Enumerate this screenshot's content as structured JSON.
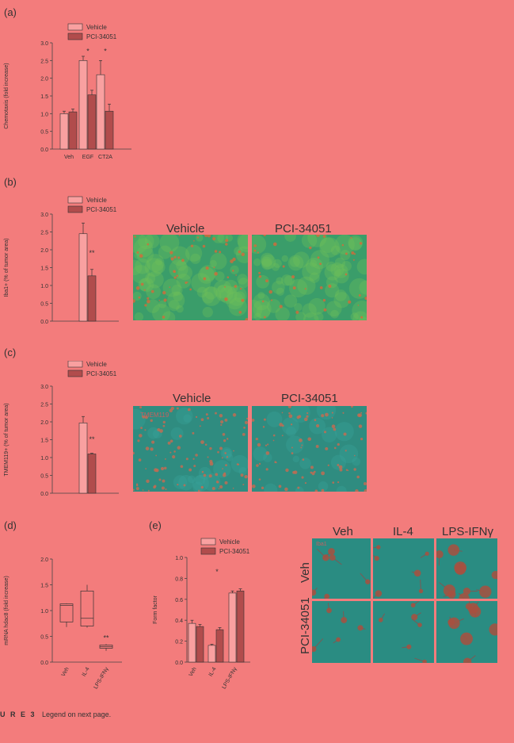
{
  "panel_labels": {
    "a": "(a)",
    "b": "(b)",
    "c": "(c)",
    "d": "(d)",
    "e": "(e)"
  },
  "legend": {
    "vehicle": "Vehicle",
    "pci": "PCI-34051"
  },
  "colors": {
    "background": "#f37c7c",
    "vehicle_bar": "#f9a0a0",
    "pci_bar": "#b14c4c",
    "image_green": "#2f9a78",
    "image_teal": "#2a8c82"
  },
  "chart_data": [
    {
      "id": "a",
      "type": "bar",
      "ylabel": "Chemotaxis (fold increase)",
      "categories": [
        "Veh",
        "EGF",
        "CT2A"
      ],
      "series": [
        {
          "name": "Vehicle",
          "values": [
            1.0,
            2.5,
            2.1
          ],
          "err": [
            0.07,
            0.12,
            0.4
          ]
        },
        {
          "name": "PCI-34051",
          "values": [
            1.05,
            1.53,
            1.07
          ],
          "err": [
            0.08,
            0.13,
            0.2
          ]
        }
      ],
      "ylim": [
        0,
        3.0
      ],
      "yticks": [
        "0.0",
        "0.5",
        "1.0",
        "1.5",
        "2.0",
        "2.5",
        "3.0"
      ],
      "annotations": [
        "*",
        "*"
      ]
    },
    {
      "id": "b",
      "type": "bar",
      "ylabel": "Iba1+ (% of tumor area)",
      "categories": [
        ""
      ],
      "series": [
        {
          "name": "Vehicle",
          "values": [
            2.45
          ],
          "err": [
            0.3
          ]
        },
        {
          "name": "PCI-34051",
          "values": [
            1.27
          ],
          "err": [
            0.18
          ]
        }
      ],
      "ylim": [
        0,
        3.0
      ],
      "yticks": [
        "0.0",
        "0.5",
        "1.0",
        "1.5",
        "2.0",
        "2.5",
        "3.0"
      ],
      "annotations": [
        "**"
      ]
    },
    {
      "id": "c",
      "type": "bar",
      "ylabel": "TMEM119+ (% of tumor area)",
      "categories": [
        ""
      ],
      "series": [
        {
          "name": "Vehicle",
          "values": [
            1.97
          ],
          "err": [
            0.18
          ]
        },
        {
          "name": "PCI-34051",
          "values": [
            1.1
          ],
          "err": [
            0.02
          ]
        }
      ],
      "ylim": [
        0,
        3.0
      ],
      "yticks": [
        "0.0",
        "0.5",
        "1.0",
        "1.5",
        "2.0",
        "2.5",
        "3.0"
      ],
      "annotations": [
        "**"
      ]
    },
    {
      "id": "d",
      "type": "box",
      "ylabel": "mRNA hdac8 (fold increase)",
      "categories": [
        "Veh",
        "IL-4",
        "LPS-IFNγ"
      ],
      "boxes": [
        {
          "min": 0.68,
          "q1": 0.78,
          "median": 1.1,
          "q3": 1.13,
          "max": 1.14
        },
        {
          "min": 0.67,
          "q1": 0.7,
          "median": 0.85,
          "q3": 1.38,
          "max": 1.5
        },
        {
          "min": 0.22,
          "q1": 0.27,
          "median": 0.3,
          "q3": 0.33,
          "max": 0.35
        }
      ],
      "ylim": [
        0,
        2.0
      ],
      "yticks": [
        "0.0",
        "0.5",
        "1.0",
        "1.5",
        "2.0"
      ],
      "annotations": [
        "**"
      ]
    },
    {
      "id": "e",
      "type": "bar",
      "ylabel": "Form factor",
      "categories": [
        "Veh",
        "IL-4",
        "LPS-IFNγ"
      ],
      "series": [
        {
          "name": "Vehicle",
          "values": [
            0.37,
            0.16,
            0.66
          ],
          "err": [
            0.03,
            0.01,
            0.02
          ]
        },
        {
          "name": "PCI-34051",
          "values": [
            0.34,
            0.31,
            0.68
          ],
          "err": [
            0.02,
            0.02,
            0.02
          ]
        }
      ],
      "ylim": [
        0,
        1.0
      ],
      "yticks": [
        "0.0",
        "0.2",
        "0.4",
        "0.6",
        "0.8",
        "1.0"
      ],
      "annotations": [
        "*"
      ]
    }
  ],
  "images": {
    "b": {
      "left_title": "Vehicle",
      "right_title": "PCI-34051"
    },
    "c": {
      "left_title": "Vehicle",
      "right_title": "PCI-34051",
      "stain": "TMEM119"
    },
    "e": {
      "col_titles": [
        "Veh",
        "IL-4",
        "LPS-IFNγ"
      ],
      "row_titles": [
        "Veh",
        "PCI-34051"
      ],
      "stain": "Iba1"
    }
  },
  "caption": {
    "label": "U R E 3",
    "text": "Legend on next page."
  }
}
